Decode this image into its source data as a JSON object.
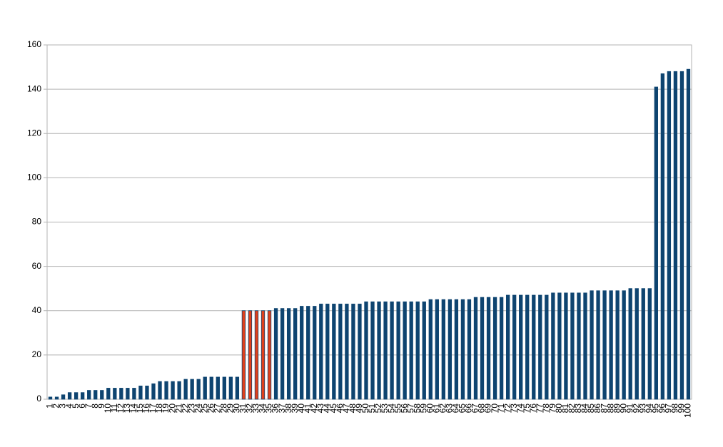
{
  "chart_data": {
    "type": "bar",
    "categories": [
      1,
      2,
      3,
      4,
      5,
      6,
      7,
      8,
      9,
      10,
      11,
      12,
      13,
      14,
      15,
      16,
      17,
      18,
      19,
      20,
      21,
      22,
      23,
      24,
      25,
      26,
      27,
      28,
      29,
      30,
      31,
      32,
      33,
      34,
      35,
      36,
      37,
      38,
      39,
      40,
      41,
      42,
      43,
      44,
      45,
      46,
      47,
      48,
      49,
      50,
      51,
      52,
      53,
      54,
      55,
      56,
      57,
      58,
      59,
      60,
      61,
      62,
      63,
      64,
      65,
      66,
      67,
      68,
      69,
      70,
      71,
      72,
      73,
      74,
      75,
      76,
      77,
      78,
      79,
      80,
      81,
      82,
      83,
      84,
      85,
      86,
      87,
      88,
      89,
      90,
      91,
      92,
      93,
      94,
      95,
      96,
      97,
      98,
      99,
      100
    ],
    "values": [
      1,
      1,
      2,
      3,
      3,
      3,
      4,
      4,
      4,
      5,
      5,
      5,
      5,
      5,
      6,
      6,
      7,
      8,
      8,
      8,
      8,
      9,
      9,
      9,
      10,
      10,
      10,
      10,
      10,
      10,
      40,
      40,
      40,
      40,
      40,
      41,
      41,
      41,
      41,
      42,
      42,
      42,
      43,
      43,
      43,
      43,
      43,
      43,
      43,
      44,
      44,
      44,
      44,
      44,
      44,
      44,
      44,
      44,
      44,
      45,
      45,
      45,
      45,
      45,
      45,
      45,
      46,
      46,
      46,
      46,
      46,
      47,
      47,
      47,
      47,
      47,
      47,
      47,
      48,
      48,
      48,
      48,
      48,
      48,
      49,
      49,
      49,
      49,
      49,
      49,
      50,
      50,
      50,
      50,
      141,
      147,
      148,
      148,
      148,
      149
    ],
    "colors": [
      "#0e4470",
      "#0e4470",
      "#0e4470",
      "#0e4470",
      "#0e4470",
      "#0e4470",
      "#0e4470",
      "#0e4470",
      "#0e4470",
      "#0e4470",
      "#0e4470",
      "#0e4470",
      "#0e4470",
      "#0e4470",
      "#0e4470",
      "#0e4470",
      "#0e4470",
      "#0e4470",
      "#0e4470",
      "#0e4470",
      "#0e4470",
      "#0e4470",
      "#0e4470",
      "#0e4470",
      "#0e4470",
      "#0e4470",
      "#0e4470",
      "#0e4470",
      "#0e4470",
      "#0e4470",
      "#e0401c",
      "#e0401c",
      "#e0401c",
      "#e0401c",
      "#e0401c",
      "#0e4470",
      "#0e4470",
      "#0e4470",
      "#0e4470",
      "#0e4470",
      "#0e4470",
      "#0e4470",
      "#0e4470",
      "#0e4470",
      "#0e4470",
      "#0e4470",
      "#0e4470",
      "#0e4470",
      "#0e4470",
      "#0e4470",
      "#0e4470",
      "#0e4470",
      "#0e4470",
      "#0e4470",
      "#0e4470",
      "#0e4470",
      "#0e4470",
      "#0e4470",
      "#0e4470",
      "#0e4470",
      "#0e4470",
      "#0e4470",
      "#0e4470",
      "#0e4470",
      "#0e4470",
      "#0e4470",
      "#0e4470",
      "#0e4470",
      "#0e4470",
      "#0e4470",
      "#0e4470",
      "#0e4470",
      "#0e4470",
      "#0e4470",
      "#0e4470",
      "#0e4470",
      "#0e4470",
      "#0e4470",
      "#0e4470",
      "#0e4470",
      "#0e4470",
      "#0e4470",
      "#0e4470",
      "#0e4470",
      "#0e4470",
      "#0e4470",
      "#0e4470",
      "#0e4470",
      "#0e4470",
      "#0e4470",
      "#0e4470",
      "#0e4470",
      "#0e4470",
      "#0e4470",
      "#0e4470",
      "#0e4470",
      "#0e4470",
      "#0e4470",
      "#0e4470",
      "#0e4470"
    ],
    "stroke": "#0e4470",
    "ylim": [
      0,
      160
    ],
    "yticks": [
      0,
      20,
      40,
      60,
      80,
      100,
      120,
      140,
      160
    ],
    "grid": true
  }
}
